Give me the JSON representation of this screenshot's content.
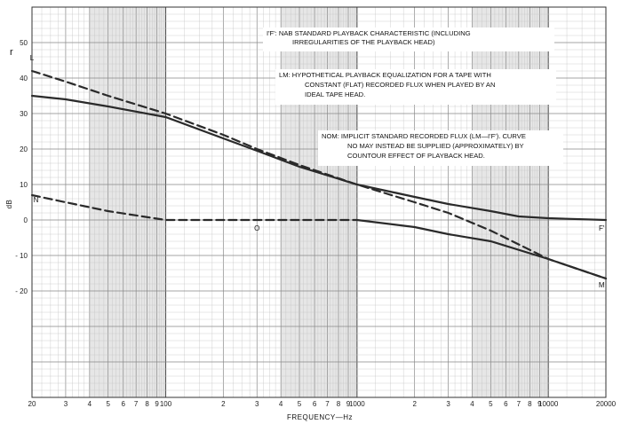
{
  "chart_data": {
    "type": "line",
    "xlabel": "FREQUENCY—Hz",
    "ylabel": "dB",
    "x_scale": "log",
    "xlim": [
      20,
      20000
    ],
    "ylim": [
      -50,
      60
    ],
    "grid": true,
    "x_ticks": [
      {
        "value": 20,
        "label": "20"
      },
      {
        "value": 30,
        "label": "3"
      },
      {
        "value": 40,
        "label": "4"
      },
      {
        "value": 50,
        "label": "5"
      },
      {
        "value": 60,
        "label": "6"
      },
      {
        "value": 70,
        "label": "7"
      },
      {
        "value": 80,
        "label": "8"
      },
      {
        "value": 90,
        "label": "9"
      },
      {
        "value": 100,
        "label": "100"
      },
      {
        "value": 200,
        "label": "2"
      },
      {
        "value": 300,
        "label": "3"
      },
      {
        "value": 400,
        "label": "4"
      },
      {
        "value": 500,
        "label": "5"
      },
      {
        "value": 600,
        "label": "6"
      },
      {
        "value": 700,
        "label": "7"
      },
      {
        "value": 800,
        "label": "8"
      },
      {
        "value": 900,
        "label": "9"
      },
      {
        "value": 1000,
        "label": "1000"
      },
      {
        "value": 2000,
        "label": "2"
      },
      {
        "value": 3000,
        "label": "3"
      },
      {
        "value": 4000,
        "label": "4"
      },
      {
        "value": 5000,
        "label": "5"
      },
      {
        "value": 6000,
        "label": "6"
      },
      {
        "value": 7000,
        "label": "7"
      },
      {
        "value": 8000,
        "label": "8"
      },
      {
        "value": 9000,
        "label": "9"
      },
      {
        "value": 10000,
        "label": "10000"
      },
      {
        "value": 20000,
        "label": "20000"
      }
    ],
    "y_ticks": [
      {
        "value": 50,
        "label": "50"
      },
      {
        "value": 40,
        "label": "40"
      },
      {
        "value": 30,
        "label": "30"
      },
      {
        "value": 20,
        "label": "20"
      },
      {
        "value": 10,
        "label": "10"
      },
      {
        "value": 0,
        "label": "0"
      },
      {
        "value": -10,
        "label": "- 10"
      },
      {
        "value": -20,
        "label": "- 20"
      }
    ],
    "series": [
      {
        "name": "I'F'",
        "style": "solid",
        "x": [
          20,
          30,
          50,
          100,
          200,
          300,
          500,
          1000,
          2000,
          3000,
          5000,
          7000,
          10000,
          20000
        ],
        "y": [
          35,
          34,
          32,
          29,
          23,
          19.5,
          15,
          10,
          6.5,
          4.5,
          2.5,
          1,
          0.5,
          0
        ]
      },
      {
        "name": "LM",
        "style": "dashed",
        "x": [
          20,
          30,
          50,
          100,
          200,
          300,
          500,
          1000,
          2000,
          3000,
          5000,
          10000,
          20000
        ],
        "y": [
          42,
          39,
          35,
          30,
          24,
          20,
          15.5,
          10,
          5,
          2,
          -3,
          -11,
          -16.5
        ]
      },
      {
        "name": "NOM",
        "style": "dashed",
        "x": [
          20,
          30,
          50,
          100,
          200,
          500,
          1000
        ],
        "y": [
          7,
          5,
          2.5,
          0,
          0,
          0,
          0
        ]
      },
      {
        "name": "NOM",
        "style": "solid",
        "x": [
          1000,
          2000,
          3000,
          5000,
          10000,
          20000
        ],
        "y": [
          0,
          -2,
          -4,
          -6,
          -11,
          -16.5
        ]
      }
    ],
    "curve_labels": [
      {
        "text": "L",
        "x": 20,
        "y": 45
      },
      {
        "text": "I",
        "x": 20,
        "y": 34
      },
      {
        "text": "N",
        "x": 21,
        "y": 5
      },
      {
        "text": "O",
        "x": 300,
        "y": -3
      },
      {
        "text": "F'",
        "x": 19000,
        "y": -3
      },
      {
        "text": "M",
        "x": 19000,
        "y": -19
      }
    ],
    "annotations": [
      {
        "lines": [
          "I'F':  NAB STANDARD PLAYBACK CHARACTERISTIC (INCLUDING",
          "IRREGULARITIES OF THE PLAYBACK HEAD)"
        ]
      },
      {
        "lines": [
          "LM:  HYPOTHETICAL PLAYBACK EQUALIZATION FOR A TAPE WITH",
          "CONSTANT (FLAT) RECORDED FLUX WHEN PLAYED BY AN",
          "IDEAL TAPE HEAD."
        ]
      },
      {
        "lines": [
          "NOM:  IMPLICIT STANDARD RECORDED FLUX (LM—I'F'). CURVE",
          "NO MAY INSTEAD BE SUPPLIED (APPROXIMATELY) BY",
          "COUNTOUR EFFECT OF PLAYBACK HEAD."
        ]
      }
    ],
    "edge_text": "r"
  }
}
